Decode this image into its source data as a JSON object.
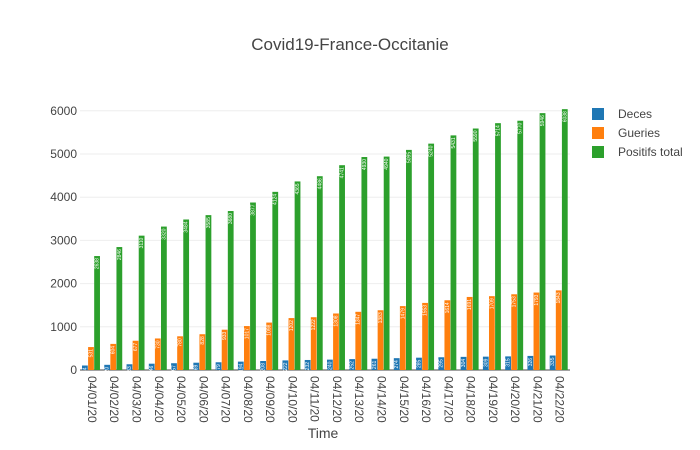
{
  "chart_data": {
    "type": "bar",
    "title": "Covid19-France-Occitanie",
    "xlabel": "Time",
    "ylabel": "",
    "ylim": [
      0,
      6250
    ],
    "yticks": [
      0,
      1000,
      2000,
      3000,
      4000,
      5000,
      6000
    ],
    "grid": true,
    "legend_position": "top-right",
    "categories": [
      "04/01/20",
      "04/02/20",
      "04/03/20",
      "04/04/20",
      "04/05/20",
      "04/06/20",
      "04/07/20",
      "04/08/20",
      "04/09/20",
      "04/10/20",
      "04/11/20",
      "04/12/20",
      "04/13/20",
      "04/14/20",
      "04/15/20",
      "04/16/20",
      "04/17/20",
      "04/18/20",
      "04/19/20",
      "04/20/20",
      "04/21/20",
      "04/22/20"
    ],
    "series": [
      {
        "name": "Deces",
        "color": "#1f77b4",
        "values": [
          104,
          120,
          133,
          146,
          157,
          169,
          179,
          194,
          208,
          222,
          232,
          240,
          252,
          261,
          274,
          285,
          295,
          304,
          309,
          315,
          326,
          335
        ]
      },
      {
        "name": "Gueries",
        "color": "#ff7f0e",
        "values": [
          531,
          604,
          677,
          730,
          780,
          828,
          933,
          1017,
          1098,
          1202,
          1222,
          1308,
          1347,
          1383,
          1479,
          1553,
          1614,
          1691,
          1709,
          1753,
          1793,
          1843
        ]
      },
      {
        "name": "Positifs total",
        "color": "#2ca02c",
        "values": [
          2638,
          2846,
          3110,
          3320,
          3484,
          3585,
          3680,
          3877,
          4124,
          4365,
          4486,
          4741,
          4930,
          4940,
          5095,
          5240,
          5431,
          5590,
          5714,
          5770,
          5946,
          6038
        ]
      }
    ]
  }
}
